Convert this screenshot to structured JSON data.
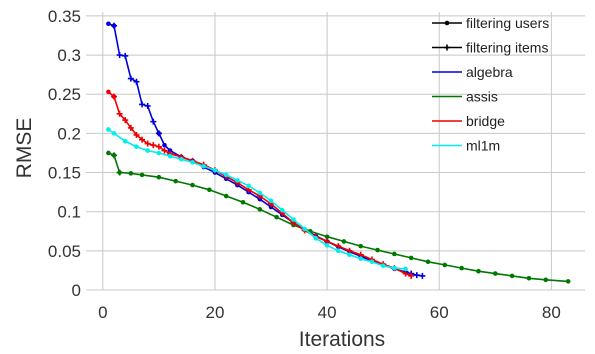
{
  "chart_data": {
    "type": "line",
    "xlabel": "Iterations",
    "ylabel": "RMSE",
    "xlim": [
      -3,
      86
    ],
    "ylim": [
      0,
      0.355
    ],
    "xticks": [
      0,
      20,
      40,
      60,
      80
    ],
    "xtick_labels": [
      "0",
      "20",
      "40",
      "60",
      "80"
    ],
    "yticks": [
      0,
      0.05,
      0.1,
      0.15,
      0.2,
      0.25,
      0.3,
      0.35
    ],
    "ytick_labels": [
      "0",
      "0.05",
      "0.1",
      "0.15",
      "0.2",
      "0.25",
      "0.3",
      "0.35"
    ],
    "grid": true,
    "legend_position": "top-right",
    "legend_markers": [
      {
        "name": "filtering users",
        "marker": "dot",
        "color": "#000000"
      },
      {
        "name": "filtering items",
        "marker": "plus",
        "color": "#000000"
      }
    ],
    "series": [
      {
        "name": "algebra",
        "color": "#0000dd",
        "segments": [
          {
            "marker": "dot",
            "points": [
              [
                1,
                0.34
              ],
              [
                2,
                0.3375
              ]
            ]
          },
          {
            "marker": "plus",
            "points": [
              [
                2,
                0.3375
              ],
              [
                3,
                0.3
              ],
              [
                4,
                0.299
              ],
              [
                5,
                0.27
              ],
              [
                6,
                0.266
              ],
              [
                7,
                0.237
              ],
              [
                8,
                0.235
              ],
              [
                9,
                0.215
              ],
              [
                10,
                0.2
              ]
            ]
          },
          {
            "marker": "dot",
            "points": [
              [
                10,
                0.2
              ],
              [
                11,
                0.185
              ],
              [
                12,
                0.178
              ],
              [
                14,
                0.17
              ],
              [
                16,
                0.165
              ],
              [
                18,
                0.157
              ],
              [
                20,
                0.15
              ],
              [
                22,
                0.142
              ],
              [
                24,
                0.134
              ],
              [
                26,
                0.125
              ],
              [
                28,
                0.116
              ],
              [
                30,
                0.106
              ],
              [
                32,
                0.096
              ],
              [
                34,
                0.086
              ],
              [
                36,
                0.077
              ],
              [
                38,
                0.069
              ],
              [
                40,
                0.062
              ],
              [
                42,
                0.055
              ],
              [
                44,
                0.049
              ],
              [
                46,
                0.043
              ],
              [
                48,
                0.037
              ],
              [
                50,
                0.032
              ],
              [
                52,
                0.027
              ],
              [
                54,
                0.023
              ]
            ]
          },
          {
            "marker": "plus",
            "points": [
              [
                54,
                0.023
              ],
              [
                55,
                0.021
              ],
              [
                56,
                0.019
              ],
              [
                57,
                0.018
              ]
            ]
          }
        ]
      },
      {
        "name": "assis",
        "color": "#007700",
        "segments": [
          {
            "marker": "dot",
            "points": [
              [
                1,
                0.175
              ],
              [
                2,
                0.172
              ]
            ]
          },
          {
            "marker": "plus",
            "points": [
              [
                2,
                0.172
              ],
              [
                3,
                0.15
              ]
            ]
          },
          {
            "marker": "dot",
            "points": [
              [
                3,
                0.15
              ],
              [
                5,
                0.149
              ],
              [
                7,
                0.147
              ],
              [
                10,
                0.144
              ],
              [
                13,
                0.139
              ],
              [
                16,
                0.134
              ],
              [
                19,
                0.128
              ],
              [
                22,
                0.12
              ],
              [
                25,
                0.112
              ],
              [
                28,
                0.103
              ],
              [
                31,
                0.093
              ],
              [
                34,
                0.083
              ],
              [
                37,
                0.075
              ],
              [
                40,
                0.068
              ],
              [
                43,
                0.062
              ],
              [
                46,
                0.056
              ],
              [
                49,
                0.051
              ],
              [
                52,
                0.046
              ],
              [
                55,
                0.041
              ],
              [
                58,
                0.036
              ],
              [
                61,
                0.032
              ],
              [
                64,
                0.028
              ],
              [
                67,
                0.024
              ],
              [
                70,
                0.021
              ],
              [
                73,
                0.018
              ],
              [
                76,
                0.015
              ],
              [
                79,
                0.013
              ],
              [
                83,
                0.011
              ]
            ]
          }
        ]
      },
      {
        "name": "bridge",
        "color": "#ee0000",
        "segments": [
          {
            "marker": "dot",
            "points": [
              [
                1,
                0.253
              ],
              [
                2,
                0.247
              ]
            ]
          },
          {
            "marker": "plus",
            "points": [
              [
                2,
                0.247
              ],
              [
                3,
                0.225
              ],
              [
                4,
                0.217
              ],
              [
                5,
                0.207
              ],
              [
                6,
                0.198
              ],
              [
                7,
                0.192
              ],
              [
                8,
                0.187
              ],
              [
                9,
                0.185
              ],
              [
                10,
                0.183
              ],
              [
                11,
                0.178
              ],
              [
                12,
                0.174
              ],
              [
                14,
                0.17
              ],
              [
                16,
                0.165
              ],
              [
                18,
                0.16
              ],
              [
                20,
                0.153
              ],
              [
                22,
                0.145
              ],
              [
                24,
                0.137
              ],
              [
                26,
                0.128
              ],
              [
                28,
                0.12
              ],
              [
                30,
                0.11
              ],
              [
                32,
                0.098
              ],
              [
                34,
                0.086
              ],
              [
                36,
                0.076
              ],
              [
                38,
                0.068
              ],
              [
                40,
                0.062
              ],
              [
                42,
                0.056
              ],
              [
                44,
                0.05
              ],
              [
                46,
                0.045
              ],
              [
                48,
                0.039
              ],
              [
                50,
                0.033
              ],
              [
                52,
                0.028
              ],
              [
                54,
                0.021
              ],
              [
                55,
                0.018
              ]
            ]
          }
        ]
      },
      {
        "name": "ml1m",
        "color": "#00eeee",
        "segments": [
          {
            "marker": "dot",
            "points": [
              [
                1,
                0.205
              ],
              [
                2,
                0.2
              ],
              [
                4,
                0.19
              ],
              [
                6,
                0.183
              ],
              [
                8,
                0.178
              ],
              [
                10,
                0.175
              ],
              [
                12,
                0.171
              ],
              [
                14,
                0.167
              ],
              [
                16,
                0.163
              ],
              [
                18,
                0.158
              ],
              [
                20,
                0.153
              ],
              [
                22,
                0.147
              ],
              [
                24,
                0.14
              ],
              [
                26,
                0.133
              ],
              [
                28,
                0.124
              ],
              [
                30,
                0.114
              ],
              [
                32,
                0.102
              ],
              [
                34,
                0.09
              ],
              [
                36,
                0.078
              ],
              [
                38,
                0.066
              ],
              [
                40,
                0.057
              ],
              [
                42,
                0.05
              ],
              [
                44,
                0.045
              ],
              [
                46,
                0.04
              ],
              [
                48,
                0.036
              ],
              [
                50,
                0.031
              ],
              [
                52,
                0.028
              ],
              [
                54,
                0.027
              ]
            ]
          }
        ]
      }
    ]
  }
}
